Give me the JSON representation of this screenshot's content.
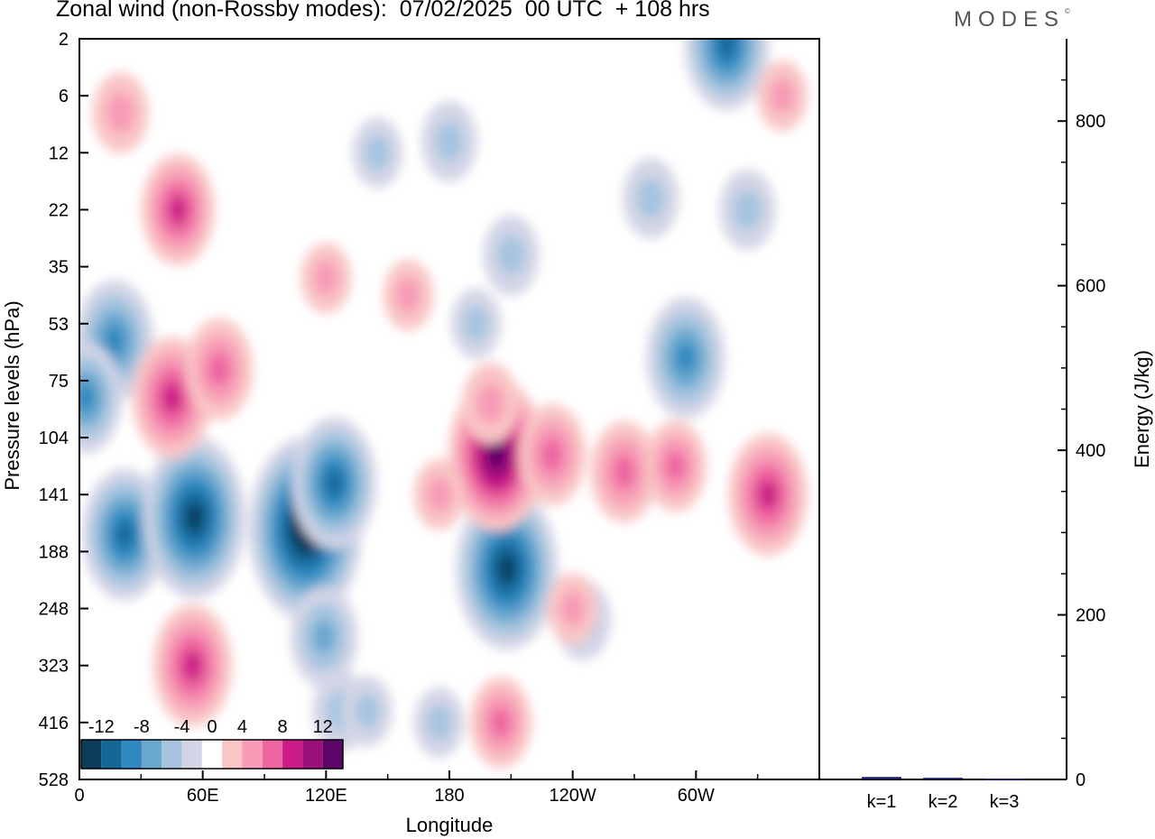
{
  "title": "Zonal wind (non-Rossby modes):  07/02/2025  00 UTC  + 108 hrs",
  "brand": {
    "text": "MODES",
    "mark": "©"
  },
  "chart_data": [
    {
      "type": "heatmap",
      "subtype": "filled-contour",
      "xlabel": "Longitude",
      "ylabel": "Pressure levels (hPa)",
      "x_ticks": [
        "0",
        "60E",
        "120E",
        "180",
        "120W",
        "60W"
      ],
      "x_tick_values": [
        0,
        60,
        120,
        180,
        240,
        300
      ],
      "xlim": [
        0,
        360
      ],
      "y_ticks": [
        "2",
        "6",
        "12",
        "22",
        "35",
        "53",
        "75",
        "104",
        "141",
        "188",
        "248",
        "323",
        "416",
        "528"
      ],
      "y_axis": "level index, top to bottom",
      "colorbar": {
        "labels": [
          "-12",
          "-8",
          "-4",
          "0",
          "4",
          "8",
          "12"
        ],
        "bounds": [
          -14,
          -12,
          -10,
          -8,
          -6,
          -4,
          -2,
          2,
          4,
          6,
          8,
          10,
          12,
          14
        ],
        "colors": [
          "#0c3e5c",
          "#15679a",
          "#2f89c0",
          "#6aa7cf",
          "#a6c4df",
          "#d3d5e6",
          "#ffffff",
          "#f9c5c5",
          "#f79bb6",
          "#ee66a0",
          "#cc1c87",
          "#9a0f7a",
          "#5c0569"
        ]
      },
      "features": [
        {
          "lon": 22,
          "level": 8.7,
          "value": -9
        },
        {
          "lon": 56,
          "level": 8.4,
          "value": -12
        },
        {
          "lon": 110,
          "level": 8.6,
          "value": -14
        },
        {
          "lon": 124,
          "level": 7.8,
          "value": -9
        },
        {
          "lon": 119,
          "level": 10.5,
          "value": -6
        },
        {
          "lon": 127,
          "level": 11.8,
          "value": -4
        },
        {
          "lon": 17,
          "level": 5.3,
          "value": -8
        },
        {
          "lon": 3,
          "level": 6.3,
          "value": -7
        },
        {
          "lon": 208,
          "level": 9.3,
          "value": -12
        },
        {
          "lon": 245,
          "level": 10.2,
          "value": -4
        },
        {
          "lon": 295,
          "level": 5.6,
          "value": -8
        },
        {
          "lon": 315,
          "level": 0.1,
          "value": -9
        },
        {
          "lon": 278,
          "level": 2.8,
          "value": -4
        },
        {
          "lon": 325,
          "level": 3.0,
          "value": -4
        },
        {
          "lon": 210,
          "level": 3.8,
          "value": -4
        },
        {
          "lon": 193,
          "level": 5.0,
          "value": -3
        },
        {
          "lon": 180,
          "level": 1.8,
          "value": -4
        },
        {
          "lon": 145,
          "level": 2.0,
          "value": -3
        },
        {
          "lon": 140,
          "level": 11.8,
          "value": -3
        },
        {
          "lon": 175,
          "level": 12.0,
          "value": -3
        },
        {
          "lon": 45,
          "level": 6.3,
          "value": 8
        },
        {
          "lon": 68,
          "level": 5.8,
          "value": 6
        },
        {
          "lon": 48,
          "level": 3.0,
          "value": 7
        },
        {
          "lon": 55,
          "level": 11.0,
          "value": 8
        },
        {
          "lon": 203,
          "level": 7.3,
          "value": 11
        },
        {
          "lon": 230,
          "level": 7.3,
          "value": 6
        },
        {
          "lon": 265,
          "level": 7.6,
          "value": 6
        },
        {
          "lon": 290,
          "level": 7.5,
          "value": 5
        },
        {
          "lon": 335,
          "level": 8.0,
          "value": 8
        },
        {
          "lon": 175,
          "level": 8.0,
          "value": 3
        },
        {
          "lon": 200,
          "level": 6.4,
          "value": 4
        },
        {
          "lon": 20,
          "level": 1.3,
          "value": 4
        },
        {
          "lon": 160,
          "level": 4.5,
          "value": 3
        },
        {
          "lon": 120,
          "level": 4.2,
          "value": 3
        },
        {
          "lon": 342,
          "level": 1.0,
          "value": 3
        },
        {
          "lon": 205,
          "level": 12.0,
          "value": 5
        },
        {
          "lon": 240,
          "level": 10.0,
          "value": 3
        }
      ]
    },
    {
      "type": "bar",
      "categories": [
        "k=1",
        "k=2",
        "k=3"
      ],
      "values": [
        3,
        2,
        1
      ],
      "ylabel": "Energy (J/kg)",
      "y_ticks": [
        "0",
        "200",
        "400",
        "600",
        "800"
      ],
      "ylim": [
        0,
        900
      ],
      "bar_color": "#1a1a5e"
    }
  ]
}
